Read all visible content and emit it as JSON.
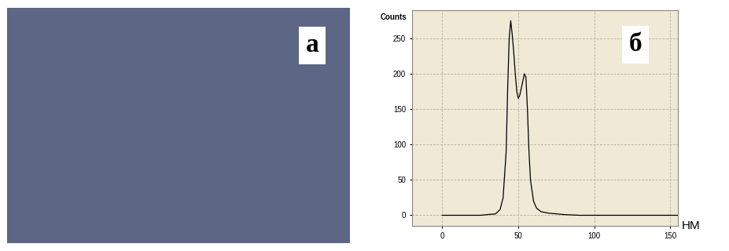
{
  "image_panel": {
    "label": "а"
  },
  "chart_data": {
    "type": "line",
    "panel_label": "б",
    "ylabel": "Counts",
    "xlabel": "НМ",
    "x": [
      0,
      5,
      10,
      15,
      20,
      25,
      30,
      35,
      38,
      40,
      42,
      43,
      44,
      45,
      46,
      47,
      48,
      49,
      50,
      51,
      52,
      53,
      54,
      55,
      56,
      57,
      58,
      60,
      62,
      65,
      70,
      75,
      80,
      90,
      100,
      110,
      120,
      130,
      140,
      150,
      155
    ],
    "values": [
      0,
      0,
      0,
      0,
      0,
      0,
      1,
      2,
      8,
      25,
      90,
      180,
      250,
      275,
      255,
      230,
      200,
      175,
      165,
      170,
      180,
      190,
      200,
      195,
      150,
      90,
      50,
      20,
      10,
      5,
      3,
      2,
      1,
      0,
      0,
      0,
      0,
      0,
      0,
      0,
      0
    ],
    "color": "#000000",
    "xlim": [
      -20,
      155
    ],
    "xticks": [
      0,
      50,
      100,
      150
    ],
    "ylim": [
      -15,
      290
    ],
    "yticks": [
      0,
      50,
      100,
      150,
      200,
      250
    ],
    "grid": true
  }
}
